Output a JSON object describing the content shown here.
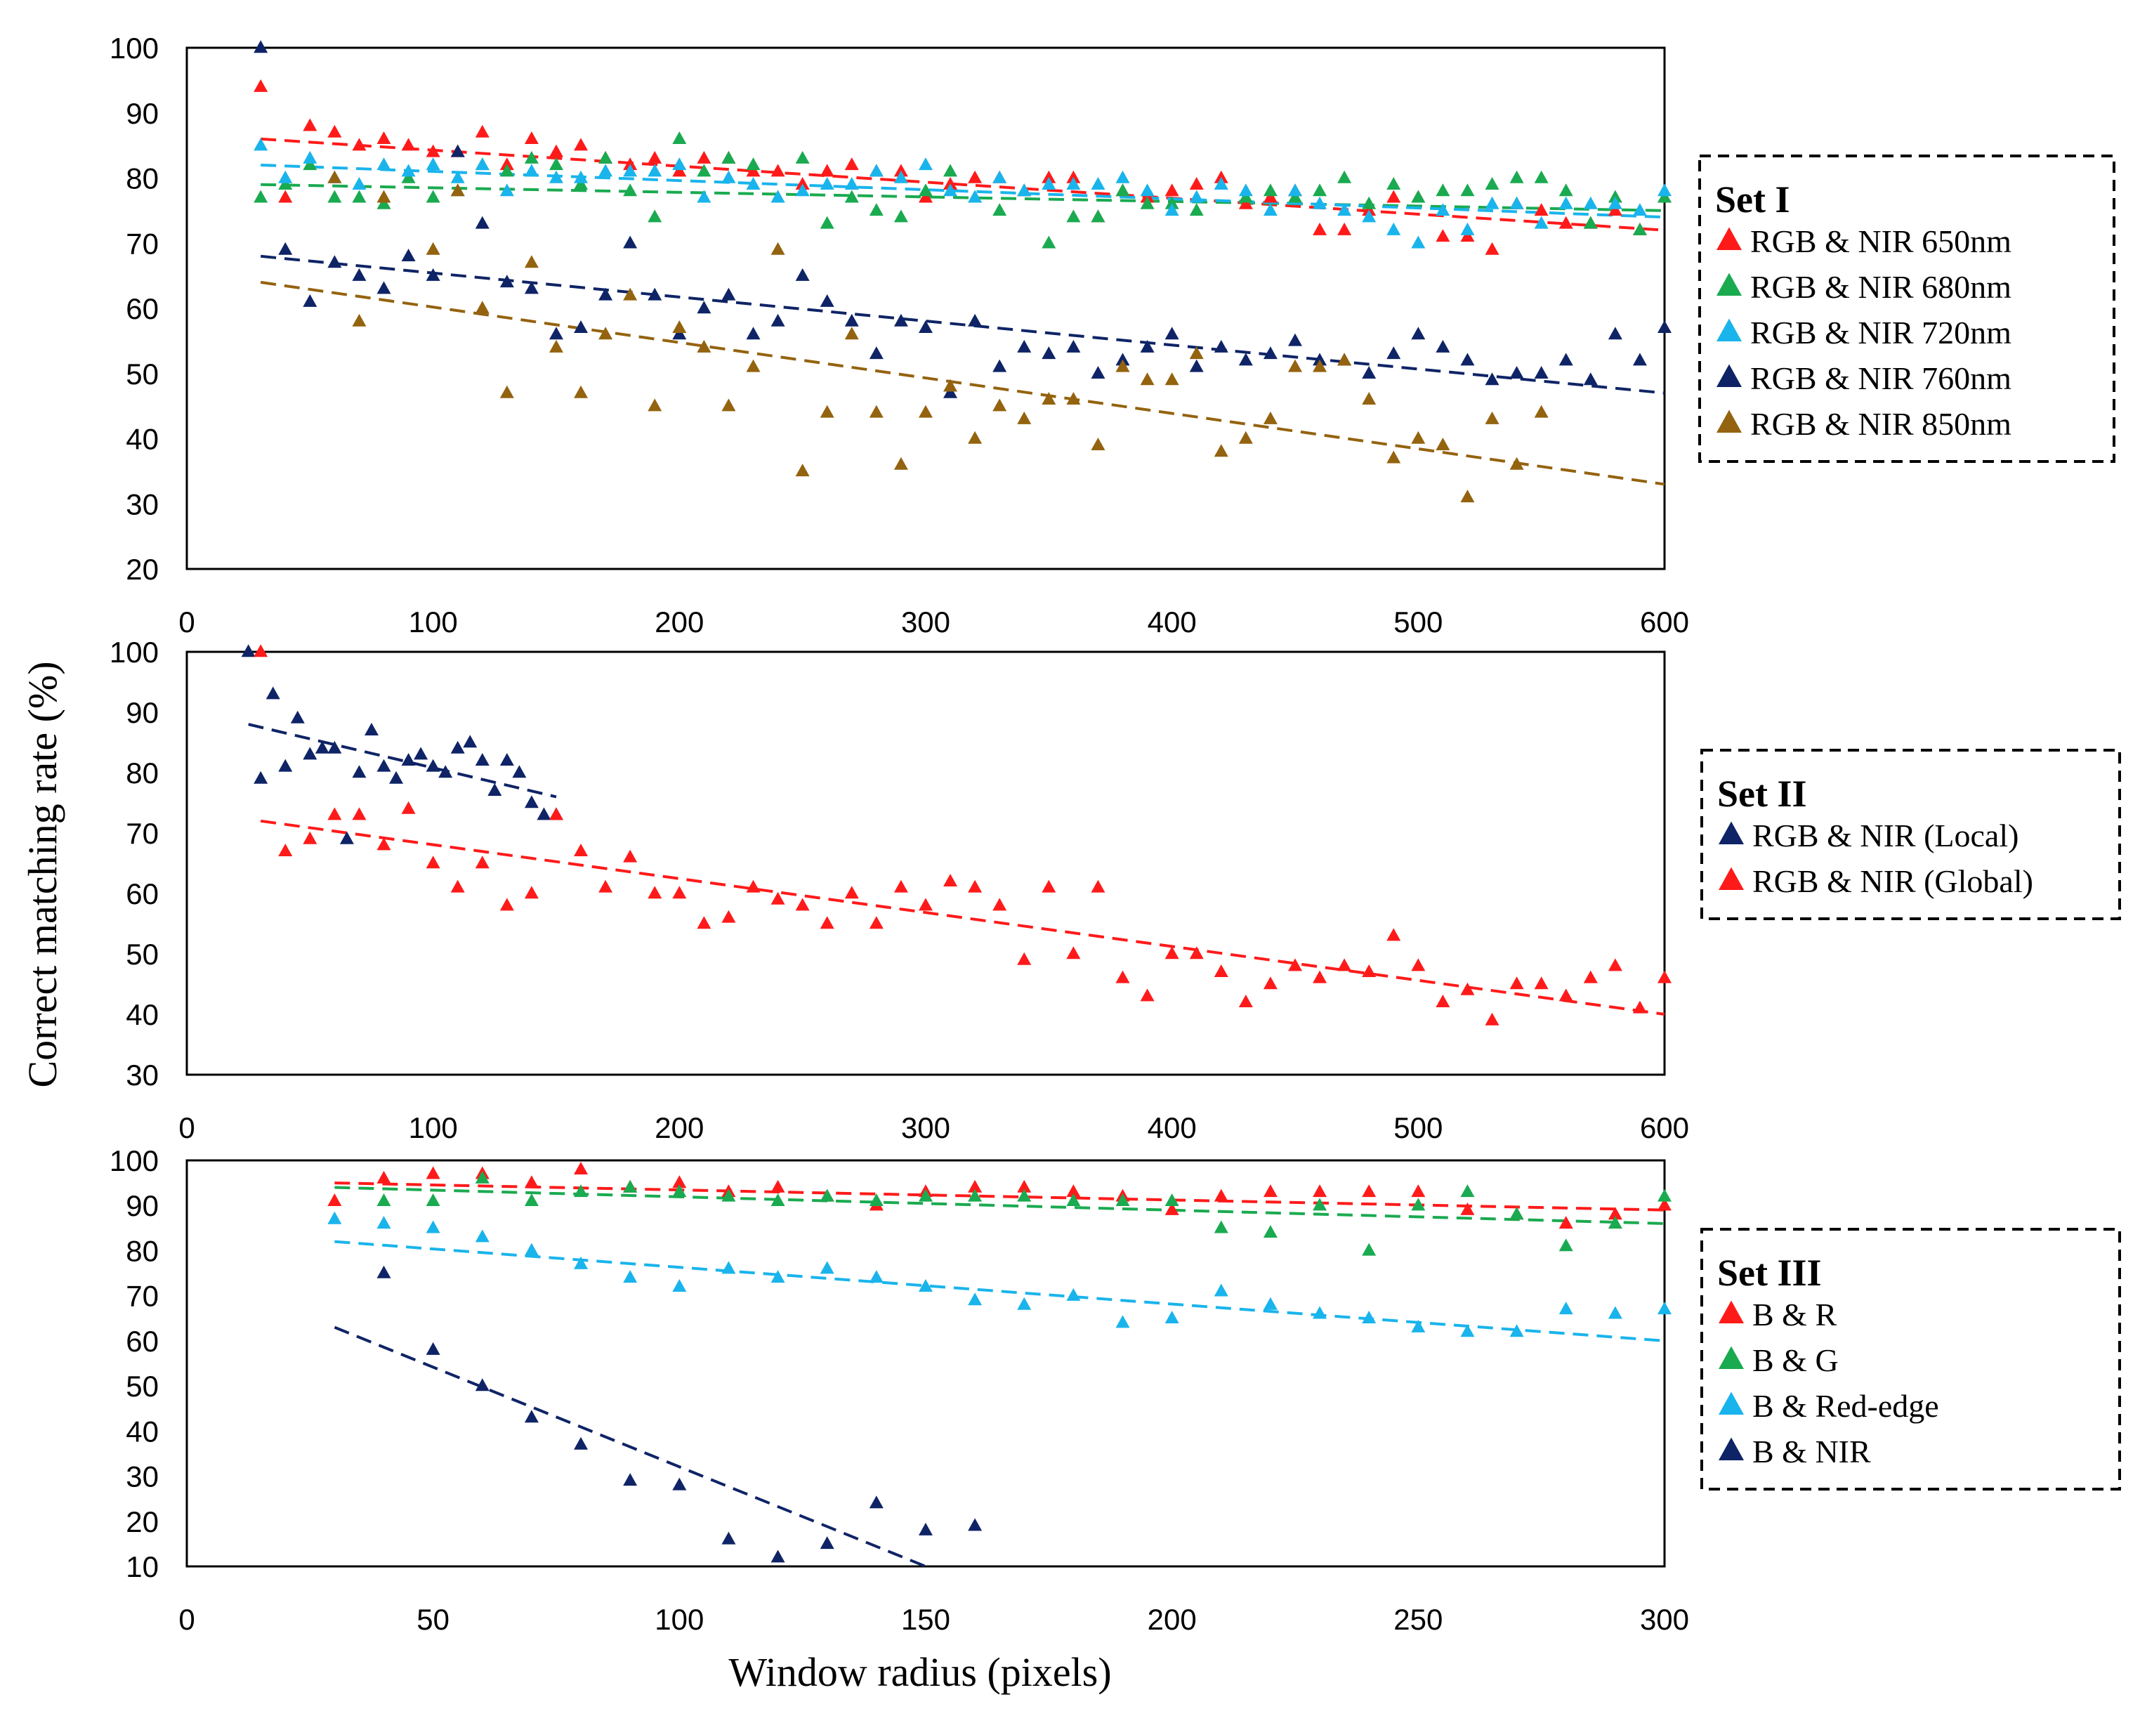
{
  "figure": {
    "ylabel": "Correct matching rate (%)",
    "xlabel": "Window radius (pixels)"
  },
  "chart_data": [
    {
      "type": "scatter",
      "title": "Set I",
      "xlim": [
        0,
        600
      ],
      "ylim": [
        20,
        100
      ],
      "xticks": [
        0,
        100,
        200,
        300,
        400,
        500,
        600
      ],
      "yticks": [
        20,
        30,
        40,
        50,
        60,
        70,
        80,
        90,
        100
      ],
      "legend_position": "right",
      "series": [
        {
          "name": "RGB & NIR 650nm",
          "color": "#ff1a1a",
          "x": [
            30,
            40,
            50,
            60,
            70,
            80,
            90,
            100,
            110,
            120,
            130,
            140,
            150,
            160,
            170,
            180,
            190,
            200,
            210,
            220,
            230,
            240,
            250,
            260,
            270,
            280,
            290,
            300,
            310,
            320,
            330,
            340,
            350,
            360,
            370,
            380,
            390,
            400,
            410,
            420,
            430,
            440,
            450,
            460,
            470,
            480,
            490,
            500,
            510,
            520,
            530,
            540,
            550,
            560,
            570,
            580,
            590,
            600
          ],
          "y": [
            94,
            77,
            88,
            87,
            85,
            86,
            85,
            84,
            84,
            87,
            82,
            86,
            84,
            85,
            83,
            82,
            83,
            81,
            83,
            83,
            81,
            81,
            79,
            81,
            82,
            81,
            81,
            77,
            79,
            80,
            80,
            78,
            80,
            80,
            74,
            78,
            77,
            78,
            79,
            80,
            76,
            77,
            78,
            72,
            72,
            75,
            77,
            77,
            71,
            71,
            69,
            76,
            75,
            73,
            73,
            75,
            72,
            77
          ],
          "trend": [
            30,
            86,
            600,
            72
          ]
        },
        {
          "name": "RGB & NIR 680nm",
          "color": "#1aaa50",
          "x": [
            30,
            40,
            50,
            60,
            70,
            80,
            90,
            100,
            110,
            120,
            130,
            140,
            150,
            160,
            170,
            180,
            190,
            200,
            210,
            220,
            230,
            240,
            250,
            260,
            270,
            280,
            290,
            300,
            310,
            320,
            330,
            340,
            350,
            360,
            370,
            380,
            390,
            400,
            410,
            420,
            430,
            440,
            450,
            460,
            470,
            480,
            490,
            500,
            510,
            520,
            530,
            540,
            550,
            560,
            570,
            580,
            590,
            600
          ],
          "y": [
            77,
            79,
            82,
            77,
            77,
            76,
            80,
            77,
            78,
            82,
            81,
            83,
            82,
            79,
            83,
            78,
            74,
            86,
            81,
            83,
            82,
            77,
            83,
            73,
            77,
            75,
            74,
            78,
            81,
            77,
            75,
            78,
            70,
            74,
            74,
            78,
            76,
            76,
            75,
            79,
            77,
            78,
            77,
            78,
            80,
            76,
            79,
            77,
            78,
            78,
            79,
            80,
            80,
            78,
            73,
            77,
            72,
            77
          ],
          "trend": [
            30,
            79,
            600,
            75
          ]
        },
        {
          "name": "RGB & NIR 720nm",
          "color": "#19b4ec",
          "x": [
            30,
            40,
            50,
            60,
            70,
            80,
            90,
            100,
            110,
            120,
            130,
            140,
            150,
            160,
            170,
            180,
            190,
            200,
            210,
            220,
            230,
            240,
            250,
            260,
            270,
            280,
            290,
            300,
            310,
            320,
            330,
            340,
            350,
            360,
            370,
            380,
            390,
            400,
            410,
            420,
            430,
            440,
            450,
            460,
            470,
            480,
            490,
            500,
            510,
            520,
            530,
            540,
            550,
            560,
            570,
            580,
            590,
            600
          ],
          "y": [
            85,
            80,
            83,
            80,
            79,
            82,
            81,
            82,
            80,
            82,
            78,
            81,
            80,
            80,
            81,
            81,
            81,
            82,
            77,
            80,
            79,
            77,
            78,
            79,
            79,
            81,
            80,
            82,
            78,
            77,
            80,
            78,
            79,
            79,
            79,
            80,
            78,
            75,
            77,
            79,
            78,
            75,
            78,
            76,
            75,
            74,
            72,
            70,
            75,
            72,
            76,
            76,
            73,
            76,
            76,
            76,
            75,
            78
          ],
          "trend": [
            30,
            82,
            600,
            74
          ]
        },
        {
          "name": "RGB & NIR 760nm",
          "color": "#0f2466",
          "x": [
            30,
            40,
            50,
            60,
            70,
            80,
            90,
            100,
            110,
            120,
            130,
            140,
            150,
            160,
            170,
            180,
            190,
            200,
            210,
            220,
            230,
            240,
            250,
            260,
            270,
            280,
            290,
            300,
            310,
            320,
            330,
            340,
            350,
            360,
            370,
            380,
            390,
            400,
            410,
            420,
            430,
            440,
            450,
            460,
            470,
            480,
            490,
            500,
            510,
            520,
            530,
            540,
            550,
            560,
            570,
            580,
            590,
            600
          ],
          "y": [
            100,
            69,
            61,
            67,
            65,
            63,
            68,
            65,
            84,
            73,
            64,
            63,
            56,
            57,
            62,
            70,
            62,
            56,
            60,
            62,
            56,
            58,
            65,
            61,
            58,
            53,
            58,
            57,
            47,
            58,
            51,
            54,
            53,
            54,
            50,
            52,
            54,
            56,
            51,
            54,
            52,
            53,
            55,
            52,
            52,
            50,
            53,
            56,
            54,
            52,
            49,
            50,
            50,
            52,
            49,
            56,
            52,
            57
          ],
          "trend": [
            30,
            68,
            600,
            47
          ]
        },
        {
          "name": "RGB & NIR 850nm",
          "color": "#94630f",
          "x": [
            60,
            70,
            80,
            100,
            110,
            120,
            130,
            140,
            150,
            160,
            170,
            180,
            190,
            200,
            210,
            220,
            230,
            240,
            250,
            260,
            270,
            280,
            290,
            300,
            310,
            320,
            330,
            340,
            350,
            360,
            370,
            380,
            390,
            400,
            410,
            420,
            430,
            440,
            450,
            460,
            470,
            480,
            490,
            500,
            510,
            520,
            530,
            540,
            550
          ],
          "y": [
            80,
            58,
            77,
            69,
            78,
            60,
            47,
            67,
            54,
            47,
            56,
            62,
            45,
            57,
            54,
            45,
            51,
            69,
            35,
            44,
            56,
            44,
            36,
            44,
            48,
            40,
            45,
            43,
            46,
            46,
            39,
            51,
            49,
            49,
            53,
            38,
            40,
            43,
            51,
            51,
            52,
            46,
            37,
            40,
            39,
            31,
            43,
            36,
            44
          ],
          "trend": [
            30,
            64,
            600,
            33
          ]
        }
      ]
    },
    {
      "type": "scatter",
      "title": "Set II",
      "xlim": [
        0,
        600
      ],
      "ylim": [
        30,
        100
      ],
      "xticks": [
        0,
        100,
        200,
        300,
        400,
        500,
        600
      ],
      "yticks": [
        30,
        40,
        50,
        60,
        70,
        80,
        90,
        100
      ],
      "legend_position": "right",
      "series": [
        {
          "name": "RGB & NIR (Local)",
          "color": "#0f2466",
          "x": [
            25,
            30,
            35,
            40,
            45,
            50,
            55,
            60,
            65,
            70,
            75,
            80,
            85,
            90,
            95,
            100,
            105,
            110,
            115,
            120,
            125,
            130,
            135,
            140,
            145,
            150
          ],
          "y": [
            100,
            79,
            93,
            81,
            89,
            83,
            84,
            84,
            69,
            80,
            87,
            81,
            79,
            82,
            83,
            81,
            80,
            84,
            85,
            82,
            77,
            82,
            80,
            75,
            73,
            73
          ],
          "trend": [
            25,
            88,
            150,
            76
          ]
        },
        {
          "name": "RGB & NIR (Global)",
          "color": "#ff1a1a",
          "x": [
            30,
            40,
            50,
            60,
            70,
            80,
            90,
            100,
            110,
            120,
            130,
            140,
            150,
            160,
            170,
            180,
            190,
            200,
            210,
            220,
            230,
            240,
            250,
            260,
            270,
            280,
            290,
            300,
            310,
            320,
            330,
            340,
            350,
            360,
            370,
            380,
            390,
            400,
            410,
            420,
            430,
            440,
            450,
            460,
            470,
            480,
            490,
            500,
            510,
            520,
            530,
            540,
            550,
            560,
            570,
            580,
            590,
            600
          ],
          "y": [
            100,
            67,
            69,
            73,
            73,
            68,
            74,
            65,
            61,
            65,
            58,
            60,
            73,
            67,
            61,
            66,
            60,
            60,
            55,
            56,
            61,
            59,
            58,
            55,
            60,
            55,
            61,
            58,
            62,
            61,
            58,
            49,
            61,
            50,
            61,
            46,
            43,
            50,
            50,
            47,
            42,
            45,
            48,
            46,
            48,
            47,
            53,
            48,
            42,
            44,
            39,
            45,
            45,
            43,
            46,
            48,
            41,
            46
          ],
          "trend": [
            30,
            72,
            600,
            40
          ]
        }
      ]
    },
    {
      "type": "scatter",
      "title": "Set III",
      "xlim": [
        0,
        300
      ],
      "ylim": [
        10,
        100
      ],
      "xticks": [
        0,
        50,
        100,
        150,
        200,
        250,
        300
      ],
      "yticks": [
        10,
        20,
        30,
        40,
        50,
        60,
        70,
        80,
        90,
        100
      ],
      "legend_position": "right",
      "series": [
        {
          "name": "B & R",
          "color": "#ff1a1a",
          "x": [
            30,
            40,
            50,
            60,
            70,
            80,
            90,
            100,
            110,
            120,
            130,
            140,
            150,
            160,
            170,
            180,
            190,
            200,
            210,
            220,
            230,
            240,
            250,
            260,
            270,
            280,
            290,
            300
          ],
          "y": [
            91,
            96,
            97,
            97,
            95,
            98,
            94,
            95,
            93,
            94,
            92,
            90,
            93,
            94,
            94,
            93,
            92,
            89,
            92,
            93,
            93,
            93,
            93,
            89,
            88,
            86,
            88,
            90
          ],
          "trend": [
            30,
            95,
            300,
            89
          ]
        },
        {
          "name": "B & G",
          "color": "#1aaa50",
          "x": [
            40,
            50,
            60,
            70,
            80,
            90,
            100,
            110,
            120,
            130,
            140,
            150,
            160,
            170,
            180,
            190,
            200,
            210,
            220,
            230,
            240,
            250,
            260,
            270,
            280,
            290,
            300
          ],
          "y": [
            91,
            91,
            96,
            91,
            93,
            94,
            93,
            92,
            91,
            92,
            91,
            92,
            92,
            92,
            91,
            91,
            91,
            85,
            84,
            90,
            80,
            90,
            93,
            88,
            81,
            86,
            92
          ],
          "trend": [
            30,
            94,
            300,
            86
          ]
        },
        {
          "name": "B & Red-edge",
          "color": "#19b4ec",
          "x": [
            30,
            40,
            50,
            60,
            70,
            80,
            90,
            100,
            110,
            120,
            130,
            140,
            150,
            160,
            170,
            180,
            190,
            200,
            210,
            220,
            230,
            240,
            250,
            260,
            270,
            280,
            290,
            300
          ],
          "y": [
            87,
            86,
            85,
            83,
            80,
            77,
            74,
            72,
            76,
            74,
            76,
            74,
            72,
            69,
            68,
            70,
            64,
            65,
            71,
            68,
            66,
            65,
            63,
            62,
            62,
            67,
            66,
            67
          ],
          "trend": [
            30,
            82,
            300,
            60
          ]
        },
        {
          "name": "B & NIR",
          "color": "#0f2466",
          "x": [
            40,
            50,
            60,
            70,
            80,
            90,
            100,
            110,
            120,
            130,
            140,
            150,
            160
          ],
          "y": [
            75,
            58,
            50,
            43,
            37,
            29,
            28,
            16,
            12,
            15,
            24,
            18,
            19
          ],
          "trend": [
            30,
            63,
            150,
            10
          ]
        }
      ]
    }
  ]
}
